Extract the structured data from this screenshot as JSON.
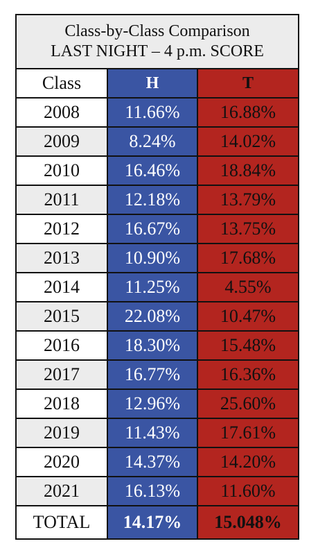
{
  "title": {
    "line1": "Class-by-Class Comparison",
    "line2": "LAST NIGHT – 4 p.m. SCORE"
  },
  "headers": {
    "class": "Class",
    "h": "H",
    "t": "T"
  },
  "rows": [
    {
      "class": "2008",
      "h": "11.66%",
      "t": "16.88%"
    },
    {
      "class": "2009",
      "h": "8.24%",
      "t": "14.02%"
    },
    {
      "class": "2010",
      "h": "16.46%",
      "t": "18.84%"
    },
    {
      "class": "2011",
      "h": "12.18%",
      "t": "13.79%"
    },
    {
      "class": "2012",
      "h": "16.67%",
      "t": "13.75%"
    },
    {
      "class": "2013",
      "h": "10.90%",
      "t": "17.68%"
    },
    {
      "class": "2014",
      "h": "11.25%",
      "t": "4.55%"
    },
    {
      "class": "2015",
      "h": "22.08%",
      "t": "10.47%"
    },
    {
      "class": "2016",
      "h": "18.30%",
      "t": "15.48%"
    },
    {
      "class": "2017",
      "h": "16.77%",
      "t": "16.36%"
    },
    {
      "class": "2018",
      "h": "12.96%",
      "t": "25.60%"
    },
    {
      "class": "2019",
      "h": "11.43%",
      "t": "17.61%"
    },
    {
      "class": "2020",
      "h": "14.37%",
      "t": "14.20%"
    },
    {
      "class": "2021",
      "h": "16.13%",
      "t": "11.60%"
    }
  ],
  "total": {
    "class": "TOTAL",
    "h": "14.17%",
    "t": "15.048%"
  },
  "colors": {
    "h": "#3a55a3",
    "t": "#b3251f",
    "stripe": "#ececec"
  }
}
